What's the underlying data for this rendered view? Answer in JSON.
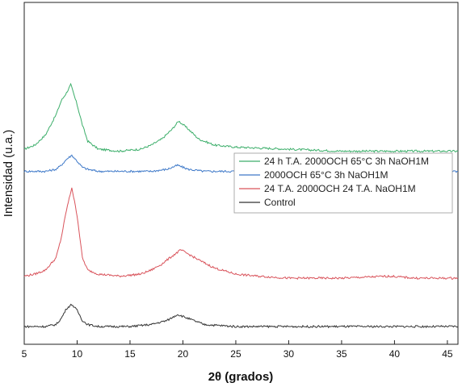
{
  "chart_data": {
    "type": "line",
    "title": "",
    "xlabel": "2θ (grados)",
    "ylabel": "Intensidad (u.a.)",
    "xlim": [
      5,
      46
    ],
    "xticks": [
      5,
      10,
      15,
      20,
      25,
      30,
      35,
      40,
      45
    ],
    "y_ticks_shown": false,
    "grid": false,
    "legend_position": "right-middle",
    "series": [
      {
        "name": "24 h T.A. 2000OCH 65°C 3h NaOH1M",
        "color": "#3cae6a",
        "x": [
          5,
          6,
          7,
          8,
          8.5,
          9,
          9.4,
          10,
          10.5,
          11,
          12,
          14,
          16,
          17,
          18,
          19,
          19.6,
          20.5,
          21.5,
          23,
          25,
          30,
          35,
          40,
          46
        ],
        "y": [
          68,
          70,
          75,
          85,
          92,
          96,
          100,
          90,
          80,
          72,
          68,
          67,
          68,
          70,
          73,
          78,
          82,
          78,
          73,
          70,
          69,
          68,
          67,
          67,
          67
        ]
      },
      {
        "name": "2000OCH 65°C 3h NaOH1M",
        "color": "#3d78c8",
        "x": [
          5,
          7,
          8,
          8.5,
          9,
          9.5,
          10,
          10.5,
          11,
          12,
          15,
          17,
          18.5,
          19.5,
          20.5,
          22,
          25,
          30,
          35,
          40,
          46
        ],
        "y": [
          57,
          57,
          58,
          60,
          63,
          65,
          62,
          59,
          58,
          57,
          57,
          57,
          58,
          60,
          58,
          57,
          57,
          57,
          57,
          57,
          57
        ]
      },
      {
        "name": "24 T.A. 2000OCH 24 T.A. NaOH1M",
        "color": "#d9535b",
        "x": [
          5,
          6,
          7,
          8,
          8.5,
          9,
          9.5,
          10,
          10.5,
          11,
          12,
          14,
          16,
          17,
          18,
          19,
          19.8,
          20.5,
          21.5,
          23,
          25,
          27,
          30,
          35,
          39.5,
          42,
          46
        ],
        "y": [
          5,
          6,
          8,
          14,
          24,
          38,
          49,
          35,
          14,
          8,
          6,
          5,
          6,
          8,
          11,
          15,
          18,
          16,
          13,
          9,
          6,
          5,
          4,
          4,
          5,
          4,
          4
        ]
      },
      {
        "name": "Control",
        "color": "#333333",
        "x": [
          5,
          7,
          8,
          8.5,
          9,
          9.5,
          10,
          10.5,
          11,
          12,
          15,
          17,
          18.5,
          19.5,
          20.5,
          22,
          25,
          30,
          35,
          40,
          46
        ],
        "y": [
          -20,
          -20,
          -19,
          -16,
          -11,
          -9,
          -12,
          -17,
          -19,
          -20,
          -20,
          -19,
          -17,
          -14,
          -16,
          -19,
          -20,
          -20,
          -20,
          -20,
          -20
        ]
      }
    ]
  }
}
